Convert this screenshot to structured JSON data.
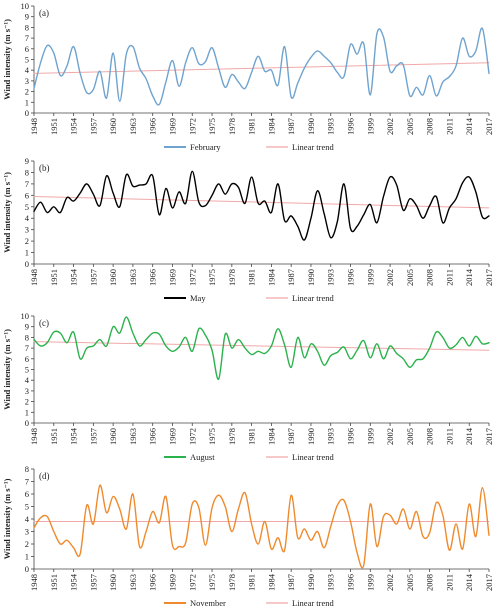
{
  "chart_data": [
    {
      "type": "line",
      "panel_label": "(a)",
      "ylabel": "Wind intensity (m s⁻¹)",
      "ylim": [
        0,
        10
      ],
      "yticks": [
        0,
        1,
        2,
        3,
        4,
        5,
        6,
        7,
        8,
        9,
        10
      ],
      "xlim": [
        1948,
        2017
      ],
      "xticks": [
        1948,
        1951,
        1954,
        1957,
        1960,
        1963,
        1966,
        1969,
        1972,
        1975,
        1978,
        1981,
        1984,
        1987,
        1990,
        1993,
        1996,
        1999,
        2002,
        2005,
        2008,
        2011,
        2014,
        2017
      ],
      "grid": false,
      "legend_position": "bottom-center",
      "series": [
        {
          "name": "February",
          "color": "#6fa3cf",
          "x": [
            1948,
            1949,
            1950,
            1951,
            1952,
            1953,
            1954,
            1955,
            1956,
            1957,
            1958,
            1959,
            1960,
            1961,
            1962,
            1963,
            1964,
            1965,
            1966,
            1967,
            1968,
            1969,
            1970,
            1971,
            1972,
            1973,
            1974,
            1975,
            1976,
            1977,
            1978,
            1979,
            1980,
            1981,
            1982,
            1983,
            1984,
            1985,
            1986,
            1987,
            1988,
            1989,
            1990,
            1991,
            1992,
            1993,
            1994,
            1995,
            1996,
            1997,
            1998,
            1999,
            2000,
            2001,
            2002,
            2003,
            2004,
            2005,
            2006,
            2007,
            2008,
            2009,
            2010,
            2011,
            2012,
            2013,
            2014,
            2015,
            2016,
            2017
          ],
          "values": [
            2.3,
            4.7,
            6.3,
            5.6,
            3.5,
            4.4,
            6.2,
            3.7,
            1.9,
            2.2,
            3.9,
            1.4,
            5.6,
            1.1,
            5.5,
            6.2,
            4.2,
            3.2,
            1.6,
            0.8,
            2.9,
            4.9,
            2.5,
            4.7,
            6.1,
            4.6,
            4.8,
            6.1,
            4.2,
            2.4,
            3.6,
            2.9,
            2.3,
            3.8,
            5.3,
            3.9,
            4.0,
            2.6,
            6.2,
            1.5,
            2.8,
            4.2,
            5.2,
            5.8,
            5.3,
            4.7,
            3.8,
            3.4,
            6.4,
            5.5,
            6.5,
            1.7,
            7.4,
            7.1,
            3.9,
            4.4,
            4.5,
            1.6,
            2.4,
            1.7,
            3.5,
            1.6,
            2.9,
            3.4,
            4.4,
            7.0,
            5.3,
            5.8,
            7.9,
            3.7
          ]
        },
        {
          "name": "Linear trend",
          "color": "#f1a8a8",
          "x": [
            1948,
            2017
          ],
          "values": [
            3.7,
            4.7
          ]
        }
      ]
    },
    {
      "type": "line",
      "panel_label": "(b)",
      "ylabel": "Wind intensity (m s⁻¹)",
      "ylim": [
        0,
        9
      ],
      "yticks": [
        0,
        1,
        2,
        3,
        4,
        5,
        6,
        7,
        8,
        9
      ],
      "xlim": [
        1948,
        2017
      ],
      "xticks": [
        1948,
        1951,
        1954,
        1957,
        1960,
        1963,
        1966,
        1969,
        1972,
        1975,
        1978,
        1981,
        1984,
        1987,
        1990,
        1993,
        1996,
        1999,
        2002,
        2005,
        2008,
        2011,
        2014,
        2017
      ],
      "grid": false,
      "legend_position": "bottom-center",
      "series": [
        {
          "name": "May",
          "color": "#000000",
          "x": [
            1948,
            1949,
            1950,
            1951,
            1952,
            1953,
            1954,
            1955,
            1956,
            1957,
            1958,
            1959,
            1960,
            1961,
            1962,
            1963,
            1964,
            1965,
            1966,
            1967,
            1968,
            1969,
            1970,
            1971,
            1972,
            1973,
            1974,
            1975,
            1976,
            1977,
            1978,
            1979,
            1980,
            1981,
            1982,
            1983,
            1984,
            1985,
            1986,
            1987,
            1988,
            1989,
            1990,
            1991,
            1992,
            1993,
            1994,
            1995,
            1996,
            1997,
            1998,
            1999,
            2000,
            2001,
            2002,
            2003,
            2004,
            2005,
            2006,
            2007,
            2008,
            2009,
            2010,
            2011,
            2012,
            2013,
            2014,
            2015,
            2016,
            2017
          ],
          "values": [
            4.6,
            5.4,
            4.5,
            5.0,
            4.5,
            5.8,
            5.5,
            6.2,
            7.0,
            6.1,
            5.1,
            7.7,
            6.2,
            5.0,
            7.8,
            6.8,
            6.9,
            7.0,
            7.7,
            4.3,
            6.6,
            4.9,
            6.3,
            5.3,
            8.1,
            5.4,
            5.1,
            6.0,
            7.0,
            6.1,
            7.0,
            6.7,
            5.3,
            7.6,
            5.3,
            5.5,
            4.5,
            7.0,
            3.8,
            4.2,
            3.3,
            2.1,
            4.0,
            6.4,
            4.4,
            2.3,
            3.7,
            7.0,
            3.1,
            3.3,
            4.3,
            5.2,
            3.6,
            5.9,
            7.6,
            6.9,
            4.7,
            5.7,
            5.1,
            4.0,
            5.1,
            5.9,
            3.6,
            4.9,
            5.7,
            7.1,
            7.6,
            6.3,
            4.1,
            4.2
          ]
        },
        {
          "name": "Linear trend",
          "color": "#f1a8a8",
          "x": [
            1948,
            2017
          ],
          "values": [
            5.9,
            4.9
          ]
        }
      ]
    },
    {
      "type": "line",
      "panel_label": "(c)",
      "ylabel": "Wind intensity (m s⁻¹)",
      "ylim": [
        0,
        10
      ],
      "yticks": [
        0,
        1,
        2,
        3,
        4,
        5,
        6,
        7,
        8,
        9,
        10
      ],
      "xlim": [
        1948,
        2017
      ],
      "xticks": [
        1948,
        1951,
        1954,
        1957,
        1960,
        1963,
        1966,
        1969,
        1972,
        1975,
        1978,
        1981,
        1984,
        1987,
        1990,
        1993,
        1996,
        1999,
        2002,
        2005,
        2008,
        2011,
        2014,
        2017
      ],
      "grid": false,
      "legend_position": "bottom-center",
      "series": [
        {
          "name": "August",
          "color": "#2bb24c",
          "x": [
            1948,
            1949,
            1950,
            1951,
            1952,
            1953,
            1954,
            1955,
            1956,
            1957,
            1958,
            1959,
            1960,
            1961,
            1962,
            1963,
            1964,
            1965,
            1966,
            1967,
            1968,
            1969,
            1970,
            1971,
            1972,
            1973,
            1974,
            1975,
            1976,
            1977,
            1978,
            1979,
            1980,
            1981,
            1982,
            1983,
            1984,
            1985,
            1986,
            1987,
            1988,
            1989,
            1990,
            1991,
            1992,
            1993,
            1994,
            1995,
            1996,
            1997,
            1998,
            1999,
            2000,
            2001,
            2002,
            2003,
            2004,
            2005,
            2006,
            2007,
            2008,
            2009,
            2010,
            2011,
            2012,
            2013,
            2014,
            2015,
            2016,
            2017
          ],
          "values": [
            7.8,
            7.2,
            7.5,
            8.5,
            8.4,
            7.5,
            8.5,
            6.0,
            7.0,
            7.2,
            7.8,
            7.2,
            9.0,
            8.4,
            9.9,
            8.4,
            7.2,
            7.8,
            8.4,
            8.3,
            7.2,
            6.7,
            7.1,
            8.0,
            6.7,
            8.8,
            8.2,
            6.8,
            4.1,
            8.3,
            7.0,
            7.8,
            7.0,
            6.4,
            6.7,
            6.5,
            7.2,
            8.8,
            7.3,
            5.2,
            8.0,
            6.1,
            7.4,
            6.7,
            5.4,
            6.3,
            6.6,
            7.1,
            6.0,
            6.8,
            7.7,
            6.1,
            7.4,
            6.0,
            7.2,
            6.5,
            6.0,
            5.2,
            5.9,
            6.0,
            7.0,
            8.5,
            8.0,
            7.0,
            7.3,
            8.0,
            7.2,
            8.1,
            7.4,
            7.5
          ]
        },
        {
          "name": "Linear trend",
          "color": "#f1a8a8",
          "x": [
            1948,
            2017
          ],
          "values": [
            7.6,
            6.8
          ]
        }
      ]
    },
    {
      "type": "line",
      "panel_label": "(d)",
      "ylabel": "Wind intensity (m s⁻¹)",
      "ylim": [
        0,
        8
      ],
      "yticks": [
        0,
        1,
        2,
        3,
        4,
        5,
        6,
        7,
        8
      ],
      "xlim": [
        1948,
        2017
      ],
      "xticks": [
        1948,
        1951,
        1954,
        1957,
        1960,
        1963,
        1966,
        1969,
        1972,
        1975,
        1978,
        1981,
        1984,
        1987,
        1990,
        1993,
        1996,
        1999,
        2002,
        2005,
        2008,
        2011,
        2014,
        2017
      ],
      "grid": false,
      "legend_position": "bottom-center",
      "series": [
        {
          "name": "November",
          "color": "#ef8a2c",
          "x": [
            1948,
            1949,
            1950,
            1951,
            1952,
            1953,
            1954,
            1955,
            1956,
            1957,
            1958,
            1959,
            1960,
            1961,
            1962,
            1963,
            1964,
            1965,
            1966,
            1967,
            1968,
            1969,
            1970,
            1971,
            1972,
            1973,
            1974,
            1975,
            1976,
            1977,
            1978,
            1979,
            1980,
            1981,
            1982,
            1983,
            1984,
            1985,
            1986,
            1987,
            1988,
            1989,
            1990,
            1991,
            1992,
            1993,
            1994,
            1995,
            1996,
            1997,
            1998,
            1999,
            2000,
            2001,
            2002,
            2003,
            2004,
            2005,
            2006,
            2007,
            2008,
            2009,
            2010,
            2011,
            2012,
            2013,
            2014,
            2015,
            2016,
            2017
          ],
          "values": [
            3.3,
            4.1,
            4.2,
            3.0,
            2.0,
            2.3,
            1.7,
            1.2,
            5.1,
            3.6,
            6.7,
            4.5,
            5.8,
            4.8,
            3.2,
            6.0,
            1.8,
            3.0,
            4.6,
            3.7,
            5.8,
            1.9,
            1.8,
            2.1,
            5.2,
            4.9,
            1.9,
            4.9,
            5.9,
            5.0,
            3.0,
            4.8,
            6.1,
            3.6,
            2.0,
            3.8,
            1.6,
            2.5,
            1.5,
            5.9,
            2.5,
            3.2,
            2.3,
            3.0,
            1.7,
            3.4,
            5.1,
            5.5,
            3.8,
            1.3,
            0.3,
            5.2,
            1.8,
            4.2,
            4.3,
            3.6,
            4.8,
            3.2,
            4.6,
            2.6,
            2.9,
            5.3,
            4.3,
            1.5,
            3.6,
            1.6,
            5.2,
            2.6,
            6.5,
            2.7
          ]
        },
        {
          "name": "Linear trend",
          "color": "#f1a8a8",
          "x": [
            1948,
            2017
          ],
          "values": [
            3.8,
            3.8
          ]
        }
      ]
    }
  ]
}
